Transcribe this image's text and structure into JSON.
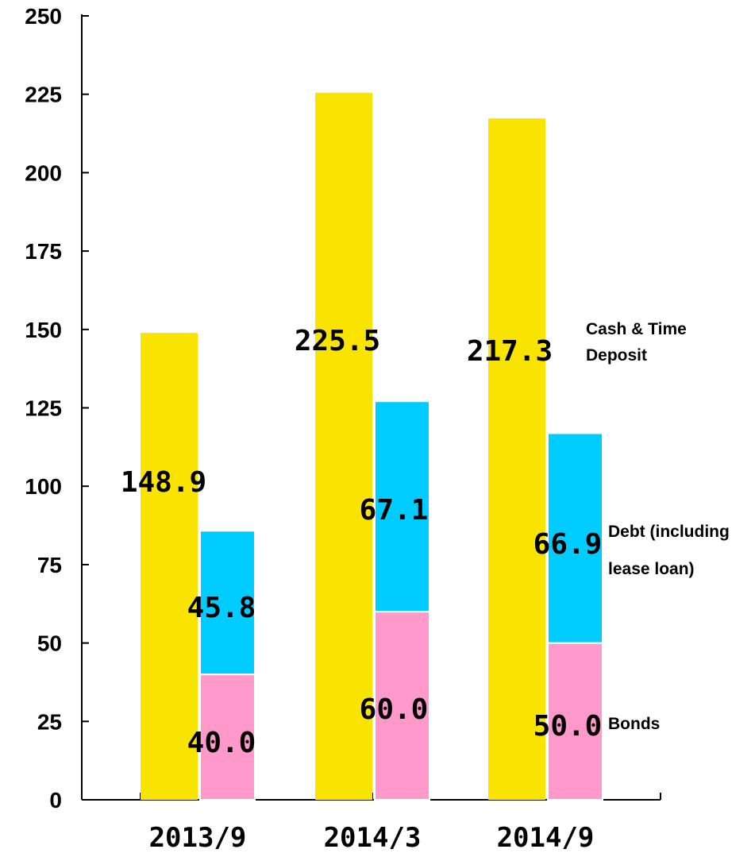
{
  "chart_data": {
    "type": "bar",
    "categories": [
      "2013/9",
      "2014/3",
      "2014/9"
    ],
    "ylim": [
      0,
      250
    ],
    "yticks": [
      0,
      25,
      50,
      75,
      100,
      125,
      150,
      175,
      200,
      225,
      250
    ],
    "grid": false,
    "cash": {
      "name": "Cash & Time Deposit",
      "name_lines": [
        "Cash & Time",
        "Deposit"
      ],
      "values": [
        148.9,
        225.5,
        217.3
      ],
      "labels": [
        "148.9",
        "225.5",
        "217.3"
      ],
      "color": "#F9E300"
    },
    "stack": [
      {
        "name": "Bonds",
        "name_lines": [
          "Bonds"
        ],
        "values": [
          40.0,
          60.0,
          50.0
        ],
        "labels": [
          "40.0",
          "60.0",
          "50.0"
        ],
        "color": "#FF99CC"
      },
      {
        "name": "Debt (including lease loan)",
        "name_lines": [
          "Debt (including",
          "lease loan)"
        ],
        "values": [
          45.8,
          67.1,
          66.9
        ],
        "labels": [
          "45.8",
          "67.1",
          "66.9"
        ],
        "color": "#00CCFF"
      }
    ]
  }
}
